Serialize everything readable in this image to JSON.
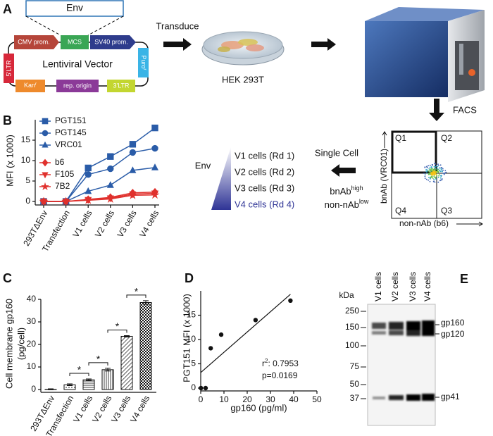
{
  "panel_a": {
    "letter": "A",
    "env": "Env",
    "cmv": "CMV prom.",
    "mcs": "MCS",
    "sv40": "SV40 prom.",
    "ltr5": "5'LTR",
    "puro": [
      "Puro",
      "r"
    ],
    "vector": "Lentiviral Vector",
    "kan": [
      "Kan",
      "r"
    ],
    "rep": "rep. origin",
    "ltr3": "3'LTR",
    "transduce": "Transduce",
    "cells": "HEK 293T",
    "facs": "FACS",
    "quadrants": [
      "Q1",
      "Q2",
      "Q4",
      "Q3"
    ],
    "facs_ylabel": "bnAb (VRC01)",
    "facs_xlabel": "non-nAb (b6)",
    "single_cell": "Single Cell",
    "bnab": [
      "bnAb",
      "high"
    ],
    "nonnab": [
      "non-nAb",
      "low"
    ],
    "gradient_label": "Env",
    "rounds": [
      "V1 cells (Rd 1)",
      "V2 cells (Rd 2)",
      "V3 cells (Rd 3)",
      "V4 cells (Rd 4)"
    ]
  },
  "chart_data": [
    {
      "type": "line",
      "panel": "B",
      "ylabel": "MFI (x 1000)",
      "categories": [
        "293TΔEnv",
        "Transfection",
        "V1 cells",
        "V2 cells",
        "V3 cells",
        "V4 cells"
      ],
      "ylim": [
        0,
        20
      ],
      "yticks": [
        0,
        5,
        10,
        15
      ],
      "series": [
        {
          "name": "PGT151",
          "color": "#2a5ca8",
          "marker": "square",
          "values": [
            0,
            0,
            8.2,
            11,
            14,
            18
          ]
        },
        {
          "name": "PGT145",
          "color": "#2a5ca8",
          "marker": "circle",
          "values": [
            0,
            0,
            6.6,
            8,
            12,
            13
          ]
        },
        {
          "name": "VRC01",
          "color": "#2a5ca8",
          "marker": "triangle",
          "values": [
            0,
            0,
            2.5,
            4,
            7.6,
            8.3
          ]
        },
        {
          "name": "b6",
          "color": "#e0312d",
          "marker": "diamond",
          "values": [
            0,
            0,
            0.5,
            1,
            2.1,
            2.3
          ]
        },
        {
          "name": "F105",
          "color": "#e0312d",
          "marker": "triangle-down",
          "values": [
            0,
            0,
            0.4,
            0.8,
            1.8,
            2
          ]
        },
        {
          "name": "7B2",
          "color": "#e0312d",
          "marker": "star",
          "values": [
            0,
            0,
            0.3,
            0.6,
            1.5,
            1.6
          ]
        }
      ]
    },
    {
      "type": "bar",
      "panel": "C",
      "ylabel": [
        "Cell membrane gp160",
        "(pg/cell)"
      ],
      "categories": [
        "293TΔEnv",
        "Transfection",
        "V1 cells",
        "V2 cells",
        "V3 cells",
        "V4 cells"
      ],
      "values": [
        0.1,
        2.1,
        4.3,
        8.8,
        23.6,
        38.6
      ],
      "errors": [
        0.2,
        0.4,
        0.4,
        0.6,
        0.3,
        0.8
      ],
      "ylim": [
        0,
        40
      ],
      "yticks": [
        0,
        10,
        20,
        30,
        40
      ],
      "significance": [
        "*",
        "*",
        "*",
        "*"
      ]
    },
    {
      "type": "scatter",
      "panel": "D",
      "xlabel": "gp160 (pg/ml)",
      "ylabel": "PGT151 MFI (x 1000)",
      "x": [
        0.1,
        2.1,
        4.3,
        8.8,
        23.6,
        38.6
      ],
      "values": [
        0,
        0,
        8.2,
        11,
        14,
        18
      ],
      "xlim": [
        0,
        50
      ],
      "xticks": [
        0,
        10,
        20,
        30,
        40,
        50
      ],
      "ylim": [
        0,
        20
      ],
      "yticks": [
        0,
        5,
        10,
        15
      ],
      "fit": {
        "x": [
          0,
          38.6
        ],
        "values": [
          3.2,
          19.3
        ]
      },
      "r2_label": [
        "r",
        "2",
        ": 0.7953"
      ],
      "p_label": "p=0.0169"
    }
  ],
  "panel_e": {
    "letter": "E",
    "unit": "kDa",
    "markers": [
      "250",
      "150",
      "100",
      "75",
      "50",
      "37"
    ],
    "lanes": [
      "V1 cells",
      "V2 cells",
      "V3 cells",
      "V4 cells"
    ],
    "bands": [
      "gp160",
      "gp120",
      "gp41"
    ]
  }
}
